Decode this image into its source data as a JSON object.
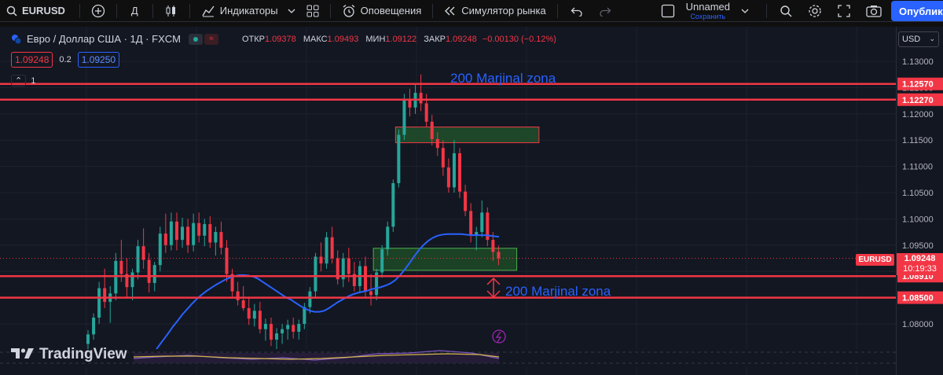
{
  "toolbar": {
    "symbol": "EURUSD",
    "interval": "Д",
    "indicators_label": "Индикаторы",
    "alerts_label": "Оповещения",
    "replay_label": "Симулятор рынка",
    "layout_name": "Unnamed",
    "save_label": "Сохранить",
    "publish_label": "Опубликовать"
  },
  "legend": {
    "title": "Евро / Доллар США · 1Д · FXCM",
    "open_label": "ОТКР",
    "open": "1.09378",
    "high_label": "МАКС",
    "high": "1.09493",
    "low_label": "МИН",
    "low": "1.09122",
    "close_label": "ЗАКР",
    "close": "1.09248",
    "change": "−0.00130 (−0.12%)",
    "sell_price": "1.09248",
    "spread": "0.2",
    "buy_price": "1.09250",
    "indicator_count": "1"
  },
  "currency": "USD",
  "price_axis": {
    "ticks": [
      "1.13000",
      "1.12500",
      "1.12000",
      "1.11500",
      "1.11000",
      "1.10500",
      "1.10000",
      "1.09500",
      "1.09000",
      "1.08500",
      "1.08000"
    ],
    "symbol_tag": "EURUSD",
    "current_price": "1.09248",
    "countdown": "10:19:33",
    "line_labels": [
      "1.12570",
      "1.12270",
      "1.08910",
      "1.08500"
    ]
  },
  "annotations": {
    "upper_text": "200 Marjinal zona",
    "lower_text": "200 Marjinal zona"
  },
  "logo_text": "TradingView",
  "colors": {
    "background": "#131722",
    "bull": "#26a69a",
    "bear": "#f23645",
    "ma": "#2962ff",
    "level": "#f23645",
    "zone": "#2e7d32",
    "accent": "#2962ff"
  },
  "chart_data": {
    "type": "candlestick",
    "symbol": "EURUSD",
    "interval": "1D",
    "ylim": [
      1.0745,
      1.1355
    ],
    "y_ticks": [
      1.13,
      1.125,
      1.12,
      1.115,
      1.11,
      1.105,
      1.1,
      1.095,
      1.09,
      1.085,
      1.08
    ],
    "horizontal_levels": [
      1.1257,
      1.1227,
      1.0891,
      1.085
    ],
    "zones": [
      {
        "price_top": 1.1175,
        "price_bottom": 1.1145,
        "start_bar": 56,
        "end_bar": 81
      },
      {
        "price_top": 1.0944,
        "price_bottom": 1.0902,
        "start_bar": 52,
        "end_bar": 77
      }
    ],
    "candles": [
      {
        "o": 1.0762,
        "h": 1.0788,
        "l": 1.0748,
        "c": 1.078
      },
      {
        "o": 1.078,
        "h": 1.082,
        "l": 1.077,
        "c": 1.0812
      },
      {
        "o": 1.0812,
        "h": 1.088,
        "l": 1.08,
        "c": 1.0868
      },
      {
        "o": 1.0868,
        "h": 1.0905,
        "l": 1.083,
        "c": 1.0842
      },
      {
        "o": 1.0842,
        "h": 1.0872,
        "l": 1.0802,
        "c": 1.0858
      },
      {
        "o": 1.0858,
        "h": 1.0935,
        "l": 1.0845,
        "c": 1.092
      },
      {
        "o": 1.092,
        "h": 1.096,
        "l": 1.088,
        "c": 1.0895
      },
      {
        "o": 1.0895,
        "h": 1.0925,
        "l": 1.085,
        "c": 1.087
      },
      {
        "o": 1.087,
        "h": 1.0905,
        "l": 1.0845,
        "c": 1.0898
      },
      {
        "o": 1.0898,
        "h": 1.096,
        "l": 1.0885,
        "c": 1.0948
      },
      {
        "o": 1.0948,
        "h": 1.0982,
        "l": 1.0905,
        "c": 1.0922
      },
      {
        "o": 1.0922,
        "h": 1.0935,
        "l": 1.086,
        "c": 1.0878
      },
      {
        "o": 1.0878,
        "h": 1.0918,
        "l": 1.0862,
        "c": 1.0912
      },
      {
        "o": 1.0912,
        "h": 1.0985,
        "l": 1.09,
        "c": 1.0972
      },
      {
        "o": 1.0972,
        "h": 1.101,
        "l": 1.0935,
        "c": 1.095
      },
      {
        "o": 1.095,
        "h": 1.1012,
        "l": 1.094,
        "c": 1.0995
      },
      {
        "o": 1.0995,
        "h": 1.1012,
        "l": 1.094,
        "c": 1.096
      },
      {
        "o": 1.096,
        "h": 1.1002,
        "l": 1.0945,
        "c": 1.0985
      },
      {
        "o": 1.0985,
        "h": 1.1,
        "l": 1.0935,
        "c": 1.095
      },
      {
        "o": 1.095,
        "h": 1.101,
        "l": 1.0938,
        "c": 1.0992
      },
      {
        "o": 1.0992,
        "h": 1.1012,
        "l": 1.0955,
        "c": 1.0968
      },
      {
        "o": 1.0968,
        "h": 1.1,
        "l": 1.0948,
        "c": 1.099
      },
      {
        "o": 1.099,
        "h": 1.1005,
        "l": 1.0945,
        "c": 1.0955
      },
      {
        "o": 1.0955,
        "h": 1.0985,
        "l": 1.093,
        "c": 1.0975
      },
      {
        "o": 1.0975,
        "h": 1.0995,
        "l": 1.0932,
        "c": 1.0945
      },
      {
        "o": 1.0945,
        "h": 1.096,
        "l": 1.088,
        "c": 1.0895
      },
      {
        "o": 1.0895,
        "h": 1.0905,
        "l": 1.085,
        "c": 1.0862
      },
      {
        "o": 1.0862,
        "h": 1.088,
        "l": 1.0835,
        "c": 1.0845
      },
      {
        "o": 1.0845,
        "h": 1.0872,
        "l": 1.0825,
        "c": 1.083
      },
      {
        "o": 1.083,
        "h": 1.0852,
        "l": 1.0798,
        "c": 1.081
      },
      {
        "o": 1.081,
        "h": 1.0838,
        "l": 1.0795,
        "c": 1.0825
      },
      {
        "o": 1.0825,
        "h": 1.0842,
        "l": 1.0782,
        "c": 1.079
      },
      {
        "o": 1.079,
        "h": 1.081,
        "l": 1.0768,
        "c": 1.08
      },
      {
        "o": 1.08,
        "h": 1.0812,
        "l": 1.0758,
        "c": 1.077
      },
      {
        "o": 1.077,
        "h": 1.0792,
        "l": 1.0752,
        "c": 1.0782
      },
      {
        "o": 1.0782,
        "h": 1.08,
        "l": 1.0762,
        "c": 1.079
      },
      {
        "o": 1.079,
        "h": 1.0808,
        "l": 1.077,
        "c": 1.0798
      },
      {
        "o": 1.0798,
        "h": 1.0812,
        "l": 1.0772,
        "c": 1.0785
      },
      {
        "o": 1.0785,
        "h": 1.0808,
        "l": 1.077,
        "c": 1.08
      },
      {
        "o": 1.08,
        "h": 1.084,
        "l": 1.079,
        "c": 1.0832
      },
      {
        "o": 1.0832,
        "h": 1.087,
        "l": 1.082,
        "c": 1.0862
      },
      {
        "o": 1.0862,
        "h": 1.0935,
        "l": 1.085,
        "c": 1.0928
      },
      {
        "o": 1.0928,
        "h": 1.0955,
        "l": 1.09,
        "c": 1.0915
      },
      {
        "o": 1.0915,
        "h": 1.0975,
        "l": 1.0905,
        "c": 1.0965
      },
      {
        "o": 1.0965,
        "h": 1.0985,
        "l": 1.0915,
        "c": 1.0925
      },
      {
        "o": 1.0925,
        "h": 1.094,
        "l": 1.0875,
        "c": 1.0885
      },
      {
        "o": 1.0885,
        "h": 1.0935,
        "l": 1.087,
        "c": 1.0925
      },
      {
        "o": 1.0925,
        "h": 1.0945,
        "l": 1.088,
        "c": 1.0895
      },
      {
        "o": 1.0895,
        "h": 1.0918,
        "l": 1.0862,
        "c": 1.0872
      },
      {
        "o": 1.0872,
        "h": 1.092,
        "l": 1.086,
        "c": 1.091
      },
      {
        "o": 1.091,
        "h": 1.0928,
        "l": 1.085,
        "c": 1.0862
      },
      {
        "o": 1.0862,
        "h": 1.0895,
        "l": 1.0835,
        "c": 1.0855
      },
      {
        "o": 1.0855,
        "h": 1.0905,
        "l": 1.0845,
        "c": 1.0898
      },
      {
        "o": 1.0898,
        "h": 1.095,
        "l": 1.0888,
        "c": 1.0942
      },
      {
        "o": 1.0942,
        "h": 1.0995,
        "l": 1.093,
        "c": 1.0985
      },
      {
        "o": 1.0985,
        "h": 1.1075,
        "l": 1.0975,
        "c": 1.1068
      },
      {
        "o": 1.1068,
        "h": 1.117,
        "l": 1.106,
        "c": 1.116
      },
      {
        "o": 1.116,
        "h": 1.1238,
        "l": 1.115,
        "c": 1.1228
      },
      {
        "o": 1.1228,
        "h": 1.1248,
        "l": 1.1195,
        "c": 1.1212
      },
      {
        "o": 1.1212,
        "h": 1.1255,
        "l": 1.12,
        "c": 1.124
      },
      {
        "o": 1.124,
        "h": 1.1275,
        "l": 1.1205,
        "c": 1.122
      },
      {
        "o": 1.122,
        "h": 1.1238,
        "l": 1.1175,
        "c": 1.1185
      },
      {
        "o": 1.1185,
        "h": 1.1198,
        "l": 1.114,
        "c": 1.1152
      },
      {
        "o": 1.1152,
        "h": 1.1165,
        "l": 1.112,
        "c": 1.1135
      },
      {
        "o": 1.1135,
        "h": 1.115,
        "l": 1.1082,
        "c": 1.1098
      },
      {
        "o": 1.1098,
        "h": 1.1115,
        "l": 1.105,
        "c": 1.106
      },
      {
        "o": 1.106,
        "h": 1.115,
        "l": 1.105,
        "c": 1.1125
      },
      {
        "o": 1.1125,
        "h": 1.1135,
        "l": 1.104,
        "c": 1.1052
      },
      {
        "o": 1.1052,
        "h": 1.1065,
        "l": 1.1005,
        "c": 1.1015
      },
      {
        "o": 1.1015,
        "h": 1.103,
        "l": 1.0955,
        "c": 1.0968
      },
      {
        "o": 1.0968,
        "h": 1.0985,
        "l": 1.094,
        "c": 1.0975
      },
      {
        "o": 1.0975,
        "h": 1.1035,
        "l": 1.0965,
        "c": 1.1012
      },
      {
        "o": 1.1012,
        "h": 1.1022,
        "l": 1.0948,
        "c": 1.096
      },
      {
        "o": 1.096,
        "h": 1.0975,
        "l": 1.092,
        "c": 1.0937
      },
      {
        "o": 1.0937,
        "h": 1.0949,
        "l": 1.0912,
        "c": 1.0925
      }
    ],
    "ma_line": [
      1.0732,
      1.0745,
      1.0758,
      1.077,
      1.0782,
      1.0795,
      1.0806,
      1.0818,
      1.0828,
      1.0838,
      1.0847,
      1.0855,
      1.0862,
      1.0868,
      1.0874,
      1.0879,
      1.0884,
      1.0888,
      1.0891,
      1.0893,
      1.0893,
      1.0892,
      1.089,
      1.0886,
      1.088,
      1.0874,
      1.0868,
      1.0862,
      1.0856,
      1.085,
      1.0846,
      1.084,
      1.0834,
      1.0829,
      1.0825,
      1.0823,
      1.0823,
      1.0825,
      1.083,
      1.0836,
      1.0842,
      1.0847,
      1.0852,
      1.0856,
      1.0859,
      1.0861,
      1.0863,
      1.0866,
      1.0868,
      1.087,
      1.0873,
      1.0877,
      1.0883,
      1.0892,
      1.0903,
      1.0915,
      1.0928,
      1.094,
      1.095,
      1.0958,
      1.0964,
      1.0968,
      1.097,
      1.0971,
      1.0971,
      1.0971,
      1.0971,
      1.097,
      1.0969,
      1.0969,
      1.0969,
      1.0969,
      1.0968,
      1.0967,
      1.0966
    ]
  }
}
